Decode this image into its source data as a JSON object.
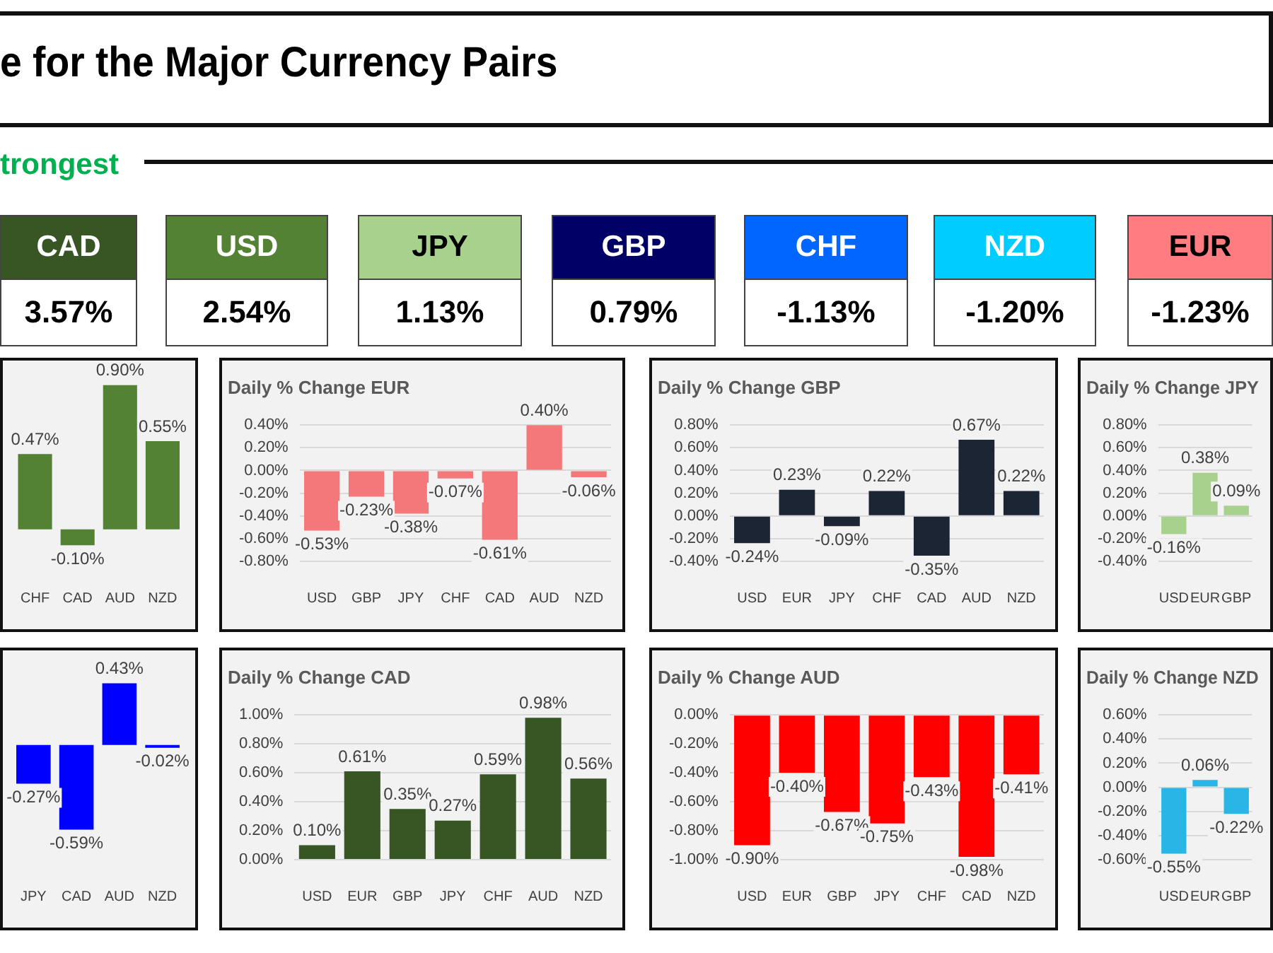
{
  "chart_data": [
    {
      "type": "other",
      "title": "e for the Major Currency Pairs",
      "subtitle": "trongest",
      "categories": [
        "CAD",
        "USD",
        "JPY",
        "GBP",
        "CHF",
        "NZD",
        "EUR"
      ],
      "value_labels": [
        "3.57%",
        "2.54%",
        "1.13%",
        "0.79%",
        "-1.13%",
        "-1.20%",
        "-1.23%"
      ],
      "colors": [
        "#375623",
        "#548235",
        "#a9d18e",
        "#000066",
        "#0066ff",
        "#00ccff",
        "#ff7c80"
      ]
    },
    {
      "type": "bar",
      "categories": [
        "CHF",
        "CAD",
        "AUD",
        "NZD"
      ],
      "values": [
        0.47,
        -0.1,
        0.9,
        0.55
      ],
      "value_labels": [
        "0.47%",
        "-0.10%",
        "0.90%",
        "0.55%"
      ],
      "color": "#548235",
      "tick_labels": "x"
    },
    {
      "type": "bar",
      "title": "Daily % Change EUR",
      "categories": [
        "USD",
        "GBP",
        "JPY",
        "CHF",
        "CAD",
        "AUD",
        "NZD"
      ],
      "values": [
        -0.53,
        -0.23,
        -0.38,
        -0.07,
        -0.61,
        0.4,
        -0.06
      ],
      "value_labels": [
        "-0.53%",
        "-0.23%",
        "-0.38%",
        "-0.07%",
        "-0.61%",
        "0.40%",
        "-0.06%"
      ],
      "color": "#f4777a",
      "ylim": [
        -0.8,
        0.4
      ],
      "yticks": [
        {
          "value": -0.8,
          "label": "-0.80%"
        },
        {
          "value": -0.6,
          "label": "-0.60%"
        },
        {
          "value": -0.4,
          "label": "-0.40%"
        },
        {
          "value": -0.2,
          "label": "-0.20%"
        },
        {
          "value": 0,
          "label": "0.00%"
        },
        {
          "value": 0.2,
          "label": "0.20%"
        },
        {
          "value": 0.4,
          "label": "0.40%"
        }
      ],
      "grid": "y"
    },
    {
      "type": "bar",
      "title": "Daily % Change GBP",
      "categories": [
        "USD",
        "EUR",
        "JPY",
        "CHF",
        "CAD",
        "AUD",
        "NZD"
      ],
      "values": [
        -0.24,
        0.23,
        -0.09,
        0.22,
        -0.35,
        0.67,
        0.22
      ],
      "value_labels": [
        "-0.24%",
        "0.23%",
        "-0.09%",
        "0.22%",
        "-0.35%",
        "0.67%",
        "0.22%"
      ],
      "color": "#1c2533",
      "ylim": [
        -0.4,
        0.8
      ],
      "yticks": [
        {
          "value": -0.4,
          "label": "-0.40%"
        },
        {
          "value": -0.2,
          "label": "-0.20%"
        },
        {
          "value": 0,
          "label": "0.00%"
        },
        {
          "value": 0.2,
          "label": "0.20%"
        },
        {
          "value": 0.4,
          "label": "0.40%"
        },
        {
          "value": 0.6,
          "label": "0.60%"
        },
        {
          "value": 0.8,
          "label": "0.80%"
        }
      ],
      "grid": "y"
    },
    {
      "type": "bar",
      "title": "Daily % Change JPY",
      "categories": [
        "USD",
        "EUR",
        "GBP"
      ],
      "values": [
        -0.16,
        0.38,
        0.09
      ],
      "value_labels": [
        "-0.16%",
        "0.38%",
        "0.09%"
      ],
      "color": "#a9d18e",
      "ylim": [
        -0.4,
        0.8
      ],
      "yticks": [
        {
          "value": -0.4,
          "label": "-0.40%"
        },
        {
          "value": -0.2,
          "label": "-0.20%"
        },
        {
          "value": 0,
          "label": "0.00%"
        },
        {
          "value": 0.2,
          "label": "0.20%"
        },
        {
          "value": 0.4,
          "label": "0.40%"
        },
        {
          "value": 0.6,
          "label": "0.60%"
        },
        {
          "value": 0.8,
          "label": "0.80%"
        }
      ],
      "grid": "y"
    },
    {
      "type": "bar",
      "categories": [
        "JPY",
        "CAD",
        "AUD",
        "NZD"
      ],
      "values": [
        -0.27,
        -0.59,
        0.43,
        -0.02
      ],
      "value_labels": [
        "-0.27%",
        "-0.59%",
        "0.43%",
        "-0.02%"
      ],
      "color": "#0000ff",
      "tick_labels": "x"
    },
    {
      "type": "bar",
      "title": "Daily % Change CAD",
      "categories": [
        "USD",
        "EUR",
        "GBP",
        "JPY",
        "CHF",
        "AUD",
        "NZD"
      ],
      "values": [
        0.1,
        0.61,
        0.35,
        0.27,
        0.59,
        0.98,
        0.56
      ],
      "value_labels": [
        "0.10%",
        "0.61%",
        "0.35%",
        "0.27%",
        "0.59%",
        "0.98%",
        "0.56%"
      ],
      "color": "#375623",
      "ylim": [
        0,
        1.0
      ],
      "yticks": [
        {
          "value": 0,
          "label": "0.00%"
        },
        {
          "value": 0.2,
          "label": "0.20%"
        },
        {
          "value": 0.4,
          "label": "0.40%"
        },
        {
          "value": 0.6,
          "label": "0.60%"
        },
        {
          "value": 0.8,
          "label": "0.80%"
        },
        {
          "value": 1.0,
          "label": "1.00%"
        }
      ],
      "grid": "y"
    },
    {
      "type": "bar",
      "title": "Daily % Change AUD",
      "categories": [
        "USD",
        "EUR",
        "GBP",
        "JPY",
        "CHF",
        "CAD",
        "NZD"
      ],
      "values": [
        -0.9,
        -0.4,
        -0.67,
        -0.75,
        -0.43,
        -0.98,
        -0.41
      ],
      "value_labels": [
        "-0.90%",
        "-0.40%",
        "-0.67%",
        "-0.75%",
        "-0.43%",
        "-0.98%",
        "-0.41%"
      ],
      "color": "#ff0000",
      "ylim": [
        -1.0,
        0
      ],
      "yticks": [
        {
          "value": -1.0,
          "label": "-1.00%"
        },
        {
          "value": -0.8,
          "label": "-0.80%"
        },
        {
          "value": -0.6,
          "label": "-0.60%"
        },
        {
          "value": -0.4,
          "label": "-0.40%"
        },
        {
          "value": -0.2,
          "label": "-0.20%"
        },
        {
          "value": 0,
          "label": "0.00%"
        }
      ],
      "grid": "y"
    },
    {
      "type": "bar",
      "title": "Daily % Change NZD",
      "categories": [
        "USD",
        "EUR",
        "GBP"
      ],
      "values": [
        -0.55,
        0.06,
        -0.22
      ],
      "value_labels": [
        "-0.55%",
        "0.06%",
        "-0.22%"
      ],
      "color": "#29b6e6",
      "ylim": [
        -0.6,
        0.6
      ],
      "yticks": [
        {
          "value": -0.6,
          "label": "-0.60%"
        },
        {
          "value": -0.4,
          "label": "-0.40%"
        },
        {
          "value": -0.2,
          "label": "-0.20%"
        },
        {
          "value": 0,
          "label": "0.00%"
        },
        {
          "value": 0.2,
          "label": "0.20%"
        },
        {
          "value": 0.4,
          "label": "0.40%"
        },
        {
          "value": 0.6,
          "label": "0.60%"
        }
      ],
      "grid": "y"
    }
  ]
}
